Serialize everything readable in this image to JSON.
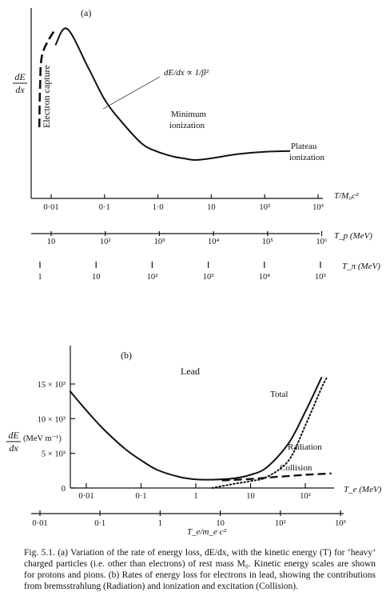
{
  "chart_data": [
    {
      "panel": "(a)",
      "type": "line",
      "ylabel_num": "dE",
      "ylabel_den": "dx",
      "xlabel": "T/M₀c²",
      "xscale": "log",
      "xlim": [
        0.005,
        1000
      ],
      "y_units": "arbitrary (no numeric y scale shown)",
      "curve": {
        "x": [
          0.012,
          0.02,
          0.05,
          0.1,
          0.2,
          0.5,
          1,
          2,
          3,
          5,
          10,
          30,
          100,
          300
        ],
        "y": [
          0.7,
          0.8,
          0.56,
          0.37,
          0.24,
          0.1,
          0.05,
          0.02,
          0.01,
          0.0,
          0.01,
          0.035,
          0.05,
          0.055
        ]
      },
      "electron_capture_region": {
        "x": [
          0.006,
          0.012
        ],
        "y": [
          0.2,
          0.8
        ]
      },
      "annotations": {
        "electron_capture": "Electron capture",
        "relation": "dE/dx ∝ 1/β²",
        "minimum_line1": "Minimum",
        "minimum_line2": "ionization",
        "plateau_line1": "Plateau",
        "plateau_line2": "ionization"
      },
      "main_axis_ticks": [
        "0·01",
        "0·1",
        "1·0",
        "10",
        "10²",
        "10³"
      ],
      "proton_scale": {
        "label": "T_p (MeV)",
        "ticks": [
          "10",
          "10²",
          "10³",
          "10⁴",
          "10⁵",
          "10⁶"
        ]
      },
      "pion_scale": {
        "label": "T_π (MeV)",
        "ticks": [
          "1",
          "10",
          "10²",
          "10³",
          "10⁴",
          "10⁵"
        ]
      }
    },
    {
      "panel": "(b)",
      "type": "line",
      "title": "Lead",
      "ylabel_num": "dE",
      "ylabel_den": "dx",
      "ylabel_units": "(MeV m⁻¹)",
      "xlabel": "T_e (MeV)",
      "xscale": "log",
      "xlim": [
        0.005,
        300
      ],
      "ylim": [
        0,
        17000
      ],
      "yticks": [
        "0",
        "5 × 10³",
        "10 × 10³",
        "15 × 10³"
      ],
      "ytick_values": [
        0,
        5000,
        10000,
        15000
      ],
      "xticks": [
        "0·01",
        "0·1",
        "1",
        "10",
        "10²"
      ],
      "xtick_values": [
        0.01,
        0.1,
        1,
        10,
        100
      ],
      "second_axis": {
        "label": "T_e/m_e c²",
        "ticks": [
          "0·01",
          "0·1",
          "1",
          "10",
          "10²",
          "10³"
        ]
      },
      "series": [
        {
          "name": "Total",
          "style": "solid",
          "x": [
            0.005,
            0.01,
            0.02,
            0.05,
            0.1,
            0.2,
            0.5,
            1,
            2,
            5,
            10,
            20,
            50,
            100,
            200
          ],
          "y": [
            14000,
            11200,
            8600,
            5700,
            4000,
            2600,
            1600,
            1250,
            1200,
            1400,
            1900,
            3000,
            6500,
            11000,
            16000
          ]
        },
        {
          "name": "Radiation",
          "style": "dotted",
          "x": [
            2,
            5,
            10,
            20,
            50,
            100,
            200,
            250
          ],
          "y": [
            0,
            600,
            1000,
            1600,
            4000,
            9000,
            14500,
            16000
          ]
        },
        {
          "name": "Collision",
          "style": "dashed",
          "x": [
            3,
            10,
            30,
            100,
            300
          ],
          "y": [
            1100,
            1300,
            1600,
            1900,
            2100
          ]
        }
      ]
    }
  ],
  "caption": {
    "fig_label": "Fig. 5.1.",
    "text": "(a) Variation of the rate of energy loss, dE/dx, with the kinetic energy (T) for ‘heavy’ charged particles (i.e. other than electrons) of rest mass M₀. Kinetic energy scales are shown for protons and pions. (b) Rates of energy loss for electrons in lead, showing the contributions from bremsstrahlung (Radiation) and ionization and excitation (Collision)."
  }
}
